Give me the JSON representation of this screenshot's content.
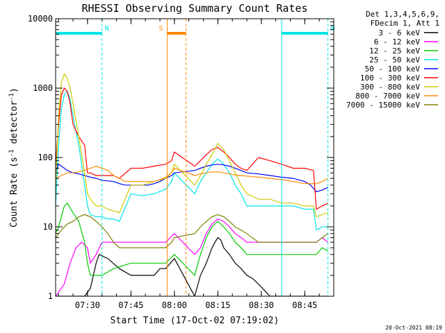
{
  "chart_data": {
    "type": "line",
    "title": "RHESSI Observing Summary Count Rates",
    "xlabel": "Start Time (17-Oct-02 07:19:02)",
    "ylabel_main": "Count Rate (s",
    "ylabel_sup1": "-1",
    "ylabel_mid": " detector",
    "ylabel_sup2": "-1",
    "ylabel_end": ")",
    "y_scale": "log",
    "ylim": [
      1,
      10000
    ],
    "xlim_minutes": [
      0,
      96
    ],
    "x_ticks": [
      {
        "t": 11,
        "label": "07:30"
      },
      {
        "t": 26,
        "label": "07:45"
      },
      {
        "t": 41,
        "label": "08:00"
      },
      {
        "t": 56,
        "label": "08:15"
      },
      {
        "t": 71,
        "label": "08:30"
      },
      {
        "t": 86,
        "label": "08:45"
      }
    ],
    "y_ticks": [
      {
        "v": 1,
        "label": "1"
      },
      {
        "v": 10,
        "label": "10"
      },
      {
        "v": 100,
        "label": "100"
      },
      {
        "v": 1000,
        "label": "1000"
      },
      {
        "v": 10000,
        "label": "10000"
      }
    ],
    "legend_position": "right",
    "legend_header": [
      "Det 1,3,4,5,6,9,",
      "FDecim 1, Att 1"
    ],
    "series": [
      {
        "name": "3 - 6 keV",
        "color": "#000000",
        "x": [
          0,
          5,
          8,
          10,
          12,
          14,
          15,
          18,
          22,
          26,
          30,
          34,
          36,
          38,
          41,
          48,
          50,
          52,
          54,
          55,
          56,
          57,
          58,
          60,
          62,
          64,
          66,
          68,
          70,
          74,
          78,
          82,
          86,
          90,
          92,
          94
        ],
        "y": [
          1,
          1,
          1,
          1,
          1.3,
          3,
          4,
          3.5,
          2.5,
          2,
          2,
          2,
          2.5,
          2.5,
          3.5,
          1,
          2,
          3,
          5,
          6,
          7,
          6.5,
          5,
          4,
          3,
          2.5,
          2,
          1.8,
          1.5,
          1,
          1,
          1,
          1,
          1,
          1,
          1
        ]
      },
      {
        "name": "6 - 12 keV",
        "color": "#ff00ff",
        "x": [
          0,
          3,
          5,
          7,
          9,
          11,
          12,
          14,
          16,
          20,
          26,
          30,
          34,
          38,
          41,
          48,
          50,
          52,
          54,
          56,
          58,
          60,
          62,
          64,
          66,
          70,
          74,
          78,
          82,
          86,
          90,
          92,
          94
        ],
        "y": [
          1,
          1.5,
          3,
          5,
          6,
          5,
          3,
          4,
          6,
          6,
          6,
          6,
          6,
          6,
          8,
          4,
          5,
          8,
          11,
          13,
          12,
          10,
          8,
          7,
          6,
          6,
          6,
          6,
          6,
          6,
          6,
          7,
          6
        ]
      },
      {
        "name": "12 - 25 keV",
        "color": "#00cc00",
        "x": [
          0,
          1,
          3,
          4,
          6,
          8,
          10,
          11,
          12,
          14,
          16,
          20,
          26,
          30,
          34,
          38,
          41,
          48,
          50,
          52,
          54,
          56,
          58,
          60,
          62,
          64,
          66,
          70,
          74,
          78,
          82,
          86,
          90,
          92,
          94
        ],
        "y": [
          8,
          10,
          20,
          22,
          16,
          12,
          6,
          3,
          2,
          2,
          2,
          2.5,
          3,
          3,
          3,
          3,
          4,
          2,
          4,
          7,
          10,
          12,
          10,
          8,
          6,
          5,
          4,
          4,
          4,
          4,
          4,
          4,
          4,
          5,
          4.5
        ]
      },
      {
        "name": "25 - 50 keV",
        "color": "#00e5e5",
        "x": [
          0,
          1,
          2,
          3,
          4,
          5,
          6,
          8,
          10,
          11,
          12,
          14,
          16,
          18,
          20,
          22,
          26,
          30,
          34,
          38,
          40,
          41,
          48,
          50,
          52,
          54,
          56,
          58,
          60,
          62,
          64,
          66,
          70,
          74,
          78,
          82,
          86,
          89,
          90,
          92,
          94
        ],
        "y": [
          20,
          150,
          500,
          800,
          900,
          700,
          400,
          150,
          40,
          20,
          15,
          14,
          14,
          13,
          13,
          12,
          30,
          28,
          30,
          35,
          45,
          60,
          30,
          45,
          60,
          80,
          95,
          80,
          60,
          40,
          30,
          20,
          20,
          20,
          20,
          20,
          18,
          18,
          9,
          10,
          10
        ]
      },
      {
        "name": "50 - 100 keV",
        "color": "#0000ff",
        "x": [
          0,
          1,
          2,
          3,
          4,
          6,
          8,
          10,
          12,
          14,
          16,
          20,
          22,
          24,
          26,
          28,
          30,
          32,
          34,
          36,
          38,
          40,
          41,
          48,
          50,
          52,
          54,
          56,
          58,
          60,
          62,
          64,
          66,
          70,
          74,
          78,
          82,
          86,
          88,
          90,
          92,
          94
        ],
        "y": [
          60,
          80,
          75,
          70,
          65,
          60,
          58,
          55,
          52,
          50,
          47,
          45,
          42,
          40,
          40,
          40,
          40,
          40,
          42,
          45,
          50,
          55,
          60,
          65,
          70,
          75,
          78,
          80,
          78,
          75,
          70,
          65,
          60,
          58,
          55,
          52,
          50,
          45,
          40,
          32,
          34,
          37
        ]
      },
      {
        "name": "100 - 300 keV",
        "color": "#ff0000",
        "x": [
          0,
          1,
          2,
          3,
          4,
          5,
          6,
          8,
          10,
          11,
          12,
          14,
          16,
          18,
          20,
          22,
          26,
          30,
          34,
          38,
          40,
          41,
          48,
          50,
          52,
          54,
          56,
          58,
          60,
          62,
          64,
          66,
          70,
          74,
          78,
          82,
          86,
          89,
          90,
          92,
          94
        ],
        "y": [
          80,
          300,
          800,
          1000,
          900,
          600,
          300,
          200,
          150,
          60,
          60,
          55,
          55,
          55,
          55,
          50,
          70,
          70,
          75,
          80,
          90,
          120,
          75,
          90,
          110,
          130,
          140,
          120,
          100,
          80,
          70,
          65,
          100,
          90,
          80,
          70,
          70,
          65,
          18,
          20,
          22
        ]
      },
      {
        "name": "300 - 800 keV",
        "color": "#cccc00",
        "x": [
          0,
          1,
          2,
          3,
          4,
          5,
          6,
          8,
          10,
          11,
          12,
          14,
          16,
          18,
          20,
          22,
          26,
          30,
          34,
          38,
          40,
          41,
          48,
          50,
          52,
          54,
          56,
          58,
          60,
          62,
          64,
          66,
          70,
          74,
          78,
          82,
          86,
          89,
          90,
          92,
          94
        ],
        "y": [
          40,
          400,
          1200,
          1600,
          1400,
          1000,
          600,
          200,
          60,
          30,
          25,
          20,
          20,
          18,
          17,
          16,
          40,
          40,
          45,
          50,
          60,
          80,
          40,
          55,
          80,
          110,
          160,
          130,
          90,
          60,
          40,
          30,
          25,
          25,
          22,
          22,
          20,
          20,
          14,
          15,
          16
        ]
      },
      {
        "name": "800 - 7000 keV",
        "color": "#ff8800",
        "x": [
          0,
          2,
          4,
          6,
          8,
          10,
          12,
          14,
          16,
          18,
          20,
          22,
          24,
          26,
          28,
          30,
          32,
          34,
          36,
          38,
          40,
          41,
          48,
          50,
          52,
          54,
          56,
          58,
          60,
          62,
          64,
          66,
          70,
          74,
          78,
          82,
          86,
          90,
          92,
          94
        ],
        "y": [
          50,
          55,
          60,
          60,
          62,
          65,
          70,
          75,
          70,
          65,
          55,
          50,
          45,
          45,
          45,
          45,
          45,
          45,
          48,
          52,
          60,
          70,
          55,
          58,
          60,
          62,
          62,
          60,
          58,
          56,
          55,
          54,
          52,
          50,
          48,
          45,
          42,
          42,
          45,
          50
        ]
      },
      {
        "name": "7000 - 15000 keV",
        "color": "#808000",
        "x": [
          0,
          2,
          4,
          6,
          8,
          10,
          12,
          14,
          16,
          18,
          20,
          22,
          26,
          30,
          34,
          38,
          40,
          41,
          48,
          50,
          52,
          54,
          56,
          58,
          60,
          62,
          64,
          66,
          70,
          74,
          78,
          82,
          86,
          90,
          92,
          94
        ],
        "y": [
          7,
          9,
          11,
          12,
          14,
          15,
          14,
          12,
          10,
          8,
          6,
          5,
          5,
          5,
          5,
          5,
          6,
          7,
          8,
          10,
          12,
          14,
          15,
          14,
          12,
          10,
          9,
          8,
          6,
          6,
          6,
          6,
          6,
          6,
          7,
          8
        ]
      }
    ],
    "annotations": [
      {
        "label": "N",
        "color": "#00e5e5",
        "t_start": 0,
        "t_end": 16
      },
      {
        "label": "N",
        "color": "#00e5e5",
        "t_start": 78,
        "t_end": 94
      },
      {
        "label": "S",
        "color": "#ff8800",
        "t_start": 38.5,
        "t_end": 45
      }
    ],
    "footer_date": "20-Oct-2021 08:19"
  }
}
